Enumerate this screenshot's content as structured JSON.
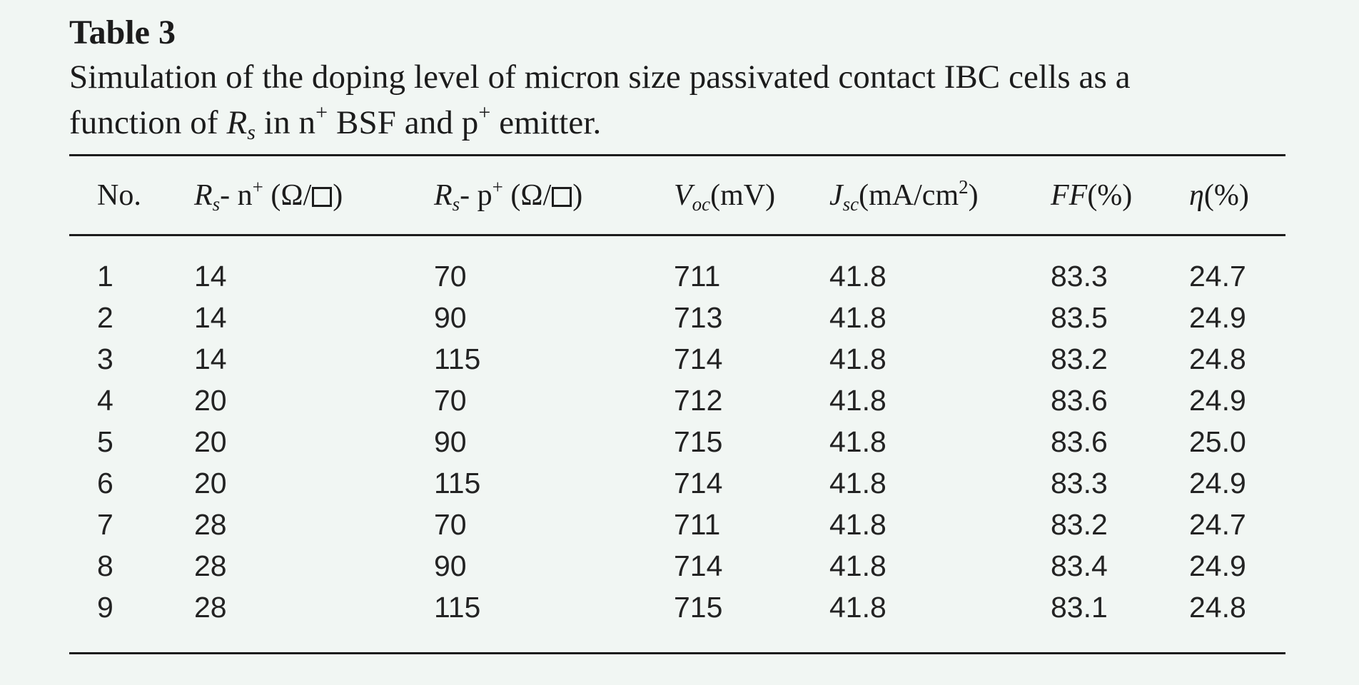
{
  "table_label": "Table 3",
  "caption": {
    "line1": "Simulation of the doping level of micron size passivated contact IBC cells as a",
    "part_function_of": "function of ",
    "R": "R",
    "s": "s",
    "part_in_n": " in n",
    "plus1": "+",
    "part_bsf_p": " BSF and p",
    "plus2": "+",
    "part_emitter": " emitter."
  },
  "columns": {
    "no": "No.",
    "rsn": {
      "R": "R",
      "s": "s",
      "rest": "- n",
      "sup": "+",
      "unit_open": " (Ω/",
      "unit_close": ")"
    },
    "rsp": {
      "R": "R",
      "s": "s",
      "rest": "- p",
      "sup": "+",
      "unit_open": " (Ω/",
      "unit_close": ")"
    },
    "voc": {
      "V": "V",
      "sub": "oc",
      "unit": "(mV)"
    },
    "jsc": {
      "J": "J",
      "sub": "sc",
      "unit": "(mA/cm",
      "sup": "2",
      "close": ")"
    },
    "ff": {
      "name": "FF",
      "unit": "(%)"
    },
    "eta": {
      "name": "η",
      "unit": "(%)"
    }
  },
  "rows": [
    [
      "1",
      "14",
      "70",
      "711",
      "41.8",
      "83.3",
      "24.7"
    ],
    [
      "2",
      "14",
      "90",
      "713",
      "41.8",
      "83.5",
      "24.9"
    ],
    [
      "3",
      "14",
      "115",
      "714",
      "41.8",
      "83.2",
      "24.8"
    ],
    [
      "4",
      "20",
      "70",
      "712",
      "41.8",
      "83.6",
      "24.9"
    ],
    [
      "5",
      "20",
      "90",
      "715",
      "41.8",
      "83.6",
      "25.0"
    ],
    [
      "6",
      "20",
      "115",
      "714",
      "41.8",
      "83.3",
      "24.9"
    ],
    [
      "7",
      "28",
      "70",
      "711",
      "41.8",
      "83.2",
      "24.7"
    ],
    [
      "8",
      "28",
      "90",
      "714",
      "41.8",
      "83.4",
      "24.9"
    ],
    [
      "9",
      "28",
      "115",
      "715",
      "41.8",
      "83.1",
      "24.8"
    ]
  ]
}
